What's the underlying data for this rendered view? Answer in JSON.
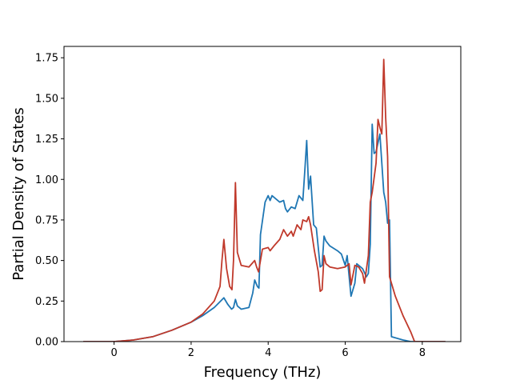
{
  "chart_data": {
    "type": "line",
    "xlabel": "Frequency (THz)",
    "ylabel": "Partial Density of States",
    "xlim": [
      -1.3,
      9.0
    ],
    "ylim": [
      0.0,
      1.82
    ],
    "xticks": [
      0,
      2,
      4,
      6,
      8
    ],
    "yticks": [
      0.0,
      0.25,
      0.5,
      0.75,
      1.0,
      1.25,
      1.5,
      1.75
    ],
    "xtick_labels": [
      "0",
      "2",
      "4",
      "6",
      "8"
    ],
    "ytick_labels": [
      "0.00",
      "0.25",
      "0.50",
      "0.75",
      "1.00",
      "1.25",
      "1.50",
      "1.75"
    ],
    "grid": false,
    "series": [
      {
        "color": "#1f77b4",
        "points": [
          [
            -0.8,
            0.0
          ],
          [
            0.0,
            0.0
          ],
          [
            0.5,
            0.01
          ],
          [
            1.0,
            0.03
          ],
          [
            1.5,
            0.07
          ],
          [
            2.0,
            0.12
          ],
          [
            2.3,
            0.16
          ],
          [
            2.6,
            0.21
          ],
          [
            2.85,
            0.27
          ],
          [
            2.95,
            0.23
          ],
          [
            3.05,
            0.2
          ],
          [
            3.1,
            0.21
          ],
          [
            3.15,
            0.26
          ],
          [
            3.2,
            0.22
          ],
          [
            3.3,
            0.2
          ],
          [
            3.5,
            0.21
          ],
          [
            3.6,
            0.3
          ],
          [
            3.65,
            0.38
          ],
          [
            3.72,
            0.34
          ],
          [
            3.76,
            0.33
          ],
          [
            3.8,
            0.66
          ],
          [
            3.92,
            0.86
          ],
          [
            4.0,
            0.9
          ],
          [
            4.05,
            0.87
          ],
          [
            4.1,
            0.9
          ],
          [
            4.3,
            0.86
          ],
          [
            4.4,
            0.87
          ],
          [
            4.45,
            0.82
          ],
          [
            4.5,
            0.8
          ],
          [
            4.6,
            0.83
          ],
          [
            4.7,
            0.82
          ],
          [
            4.8,
            0.9
          ],
          [
            4.9,
            0.87
          ],
          [
            4.95,
            1.05
          ],
          [
            5.0,
            1.24
          ],
          [
            5.05,
            0.94
          ],
          [
            5.1,
            1.02
          ],
          [
            5.18,
            0.72
          ],
          [
            5.25,
            0.7
          ],
          [
            5.35,
            0.46
          ],
          [
            5.4,
            0.47
          ],
          [
            5.45,
            0.65
          ],
          [
            5.5,
            0.62
          ],
          [
            5.6,
            0.59
          ],
          [
            5.8,
            0.56
          ],
          [
            5.9,
            0.54
          ],
          [
            6.0,
            0.47
          ],
          [
            6.05,
            0.53
          ],
          [
            6.15,
            0.28
          ],
          [
            6.25,
            0.36
          ],
          [
            6.3,
            0.48
          ],
          [
            6.45,
            0.45
          ],
          [
            6.55,
            0.4
          ],
          [
            6.6,
            0.42
          ],
          [
            6.65,
            0.6
          ],
          [
            6.7,
            1.34
          ],
          [
            6.75,
            1.16
          ],
          [
            6.8,
            1.17
          ],
          [
            6.9,
            1.28
          ],
          [
            7.0,
            0.92
          ],
          [
            7.05,
            0.86
          ],
          [
            7.1,
            0.73
          ],
          [
            7.15,
            0.75
          ],
          [
            7.2,
            0.03
          ],
          [
            7.5,
            0.01
          ],
          [
            7.7,
            0.0
          ],
          [
            8.6,
            0.0
          ]
        ]
      },
      {
        "color": "#c0392b",
        "points": [
          [
            -0.8,
            0.0
          ],
          [
            0.0,
            0.0
          ],
          [
            0.5,
            0.01
          ],
          [
            1.0,
            0.03
          ],
          [
            1.5,
            0.07
          ],
          [
            2.0,
            0.12
          ],
          [
            2.3,
            0.17
          ],
          [
            2.6,
            0.25
          ],
          [
            2.75,
            0.34
          ],
          [
            2.8,
            0.5
          ],
          [
            2.85,
            0.63
          ],
          [
            2.92,
            0.45
          ],
          [
            3.0,
            0.34
          ],
          [
            3.06,
            0.32
          ],
          [
            3.1,
            0.5
          ],
          [
            3.15,
            0.98
          ],
          [
            3.2,
            0.55
          ],
          [
            3.3,
            0.47
          ],
          [
            3.5,
            0.46
          ],
          [
            3.65,
            0.5
          ],
          [
            3.7,
            0.46
          ],
          [
            3.75,
            0.43
          ],
          [
            3.85,
            0.57
          ],
          [
            4.0,
            0.58
          ],
          [
            4.05,
            0.56
          ],
          [
            4.15,
            0.59
          ],
          [
            4.3,
            0.63
          ],
          [
            4.4,
            0.69
          ],
          [
            4.5,
            0.65
          ],
          [
            4.6,
            0.68
          ],
          [
            4.65,
            0.65
          ],
          [
            4.75,
            0.72
          ],
          [
            4.85,
            0.69
          ],
          [
            4.9,
            0.75
          ],
          [
            5.0,
            0.74
          ],
          [
            5.05,
            0.77
          ],
          [
            5.1,
            0.72
          ],
          [
            5.2,
            0.56
          ],
          [
            5.3,
            0.43
          ],
          [
            5.35,
            0.31
          ],
          [
            5.4,
            0.32
          ],
          [
            5.45,
            0.53
          ],
          [
            5.5,
            0.48
          ],
          [
            5.6,
            0.46
          ],
          [
            5.8,
            0.45
          ],
          [
            6.0,
            0.46
          ],
          [
            6.1,
            0.48
          ],
          [
            6.15,
            0.35
          ],
          [
            6.25,
            0.47
          ],
          [
            6.35,
            0.46
          ],
          [
            6.45,
            0.42
          ],
          [
            6.5,
            0.36
          ],
          [
            6.6,
            0.53
          ],
          [
            6.65,
            0.86
          ],
          [
            6.7,
            0.92
          ],
          [
            6.8,
            1.1
          ],
          [
            6.85,
            1.37
          ],
          [
            6.9,
            1.32
          ],
          [
            6.95,
            1.28
          ],
          [
            7.0,
            1.74
          ],
          [
            7.05,
            1.38
          ],
          [
            7.1,
            1.14
          ],
          [
            7.15,
            0.4
          ],
          [
            7.3,
            0.28
          ],
          [
            7.5,
            0.16
          ],
          [
            7.7,
            0.06
          ],
          [
            7.8,
            0.0
          ],
          [
            8.6,
            0.0
          ]
        ]
      }
    ]
  }
}
